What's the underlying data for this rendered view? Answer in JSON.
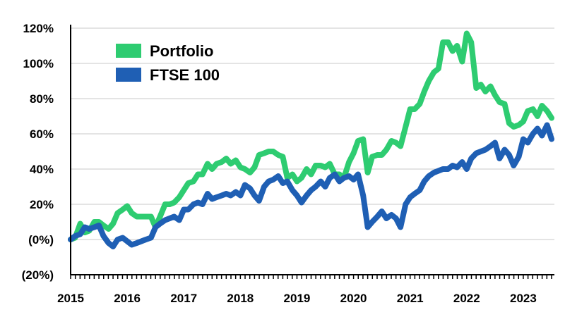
{
  "chart_data": {
    "type": "line",
    "title": "",
    "xlabel": "",
    "ylabel": "",
    "xlim": [
      2015.0,
      2023.55
    ],
    "ylim": [
      -20,
      120
    ],
    "grid": "horizontal",
    "legend": "top-left",
    "colors": {
      "Portfolio": "#2ecc71",
      "FTSE 100": "#1f5fb4"
    },
    "x_ticks": [
      {
        "value": 2015,
        "label": "2015"
      },
      {
        "value": 2016,
        "label": "2016"
      },
      {
        "value": 2017,
        "label": "2017"
      },
      {
        "value": 2018,
        "label": "2018"
      },
      {
        "value": 2019,
        "label": "2019"
      },
      {
        "value": 2020,
        "label": "2020"
      },
      {
        "value": 2021,
        "label": "2021"
      },
      {
        "value": 2022,
        "label": "2022"
      },
      {
        "value": 2023,
        "label": "2023"
      }
    ],
    "y_ticks": [
      {
        "value": 120,
        "label": "120%"
      },
      {
        "value": 100,
        "label": "100%"
      },
      {
        "value": 80,
        "label": "80%"
      },
      {
        "value": 60,
        "label": "60%"
      },
      {
        "value": 40,
        "label": "40%"
      },
      {
        "value": 20,
        "label": "20%"
      },
      {
        "value": 0,
        "label": "(0%)"
      },
      {
        "value": -20,
        "label": "(20%)"
      }
    ],
    "x": [
      2015.0,
      2015.08,
      2015.17,
      2015.25,
      2015.33,
      2015.42,
      2015.5,
      2015.58,
      2015.67,
      2015.75,
      2015.83,
      2015.92,
      2016.0,
      2016.08,
      2016.17,
      2016.25,
      2016.33,
      2016.42,
      2016.5,
      2016.58,
      2016.67,
      2016.75,
      2016.83,
      2016.92,
      2017.0,
      2017.08,
      2017.17,
      2017.25,
      2017.33,
      2017.42,
      2017.5,
      2017.58,
      2017.67,
      2017.75,
      2017.83,
      2017.92,
      2018.0,
      2018.08,
      2018.17,
      2018.25,
      2018.33,
      2018.42,
      2018.5,
      2018.58,
      2018.67,
      2018.75,
      2018.83,
      2018.92,
      2019.0,
      2019.08,
      2019.17,
      2019.25,
      2019.33,
      2019.42,
      2019.5,
      2019.58,
      2019.67,
      2019.75,
      2019.83,
      2019.92,
      2020.0,
      2020.08,
      2020.17,
      2020.25,
      2020.33,
      2020.42,
      2020.5,
      2020.58,
      2020.67,
      2020.75,
      2020.83,
      2020.92,
      2021.0,
      2021.08,
      2021.17,
      2021.25,
      2021.33,
      2021.42,
      2021.5,
      2021.58,
      2021.67,
      2021.75,
      2021.83,
      2021.92,
      2022.0,
      2022.08,
      2022.17,
      2022.25,
      2022.33,
      2022.42,
      2022.5,
      2022.58,
      2022.67,
      2022.75,
      2022.83,
      2022.92,
      2023.0,
      2023.08,
      2023.17,
      2023.25,
      2023.33,
      2023.42,
      2023.5
    ],
    "series": [
      {
        "name": "Portfolio",
        "values": [
          0,
          1,
          9,
          4,
          5,
          10,
          10,
          8,
          6,
          9,
          15,
          17,
          19,
          15,
          13,
          13,
          13,
          13,
          7,
          13,
          20,
          20,
          21,
          24,
          28,
          32,
          33,
          37,
          37,
          43,
          40,
          43,
          44,
          46,
          43,
          45,
          41,
          40,
          38,
          41,
          48,
          49,
          50,
          50,
          48,
          47,
          35,
          37,
          33,
          35,
          40,
          37,
          42,
          42,
          41,
          43,
          37,
          37,
          35,
          44,
          49,
          56,
          57,
          38,
          47,
          48,
          48,
          51,
          56,
          55,
          53,
          64,
          74,
          74,
          77,
          84,
          90,
          95,
          97,
          112,
          112,
          107,
          110,
          101,
          117,
          112,
          86,
          88,
          84,
          87,
          82,
          78,
          77,
          66,
          64,
          65,
          67,
          73,
          74,
          70,
          76,
          73,
          69
        ]
      },
      {
        "name": "FTSE 100",
        "values": [
          0,
          2,
          3,
          7,
          6,
          7,
          8,
          2,
          -2,
          -4,
          0,
          1,
          -1,
          -3,
          -2,
          -1,
          0,
          1,
          7,
          9,
          11,
          12,
          13,
          11,
          17,
          17,
          20,
          21,
          20,
          26,
          23,
          24,
          25,
          26,
          25,
          27,
          25,
          31,
          29,
          25,
          22,
          30,
          33,
          34,
          36,
          32,
          33,
          28,
          25,
          21,
          25,
          28,
          30,
          33,
          30,
          35,
          37,
          33,
          35,
          36,
          34,
          37,
          25,
          7,
          10,
          13,
          16,
          12,
          14,
          12,
          7,
          20,
          24,
          26,
          28,
          33,
          36,
          38,
          39,
          40,
          40,
          42,
          41,
          44,
          40,
          46,
          49,
          50,
          51,
          53,
          55,
          46,
          51,
          48,
          42,
          47,
          57,
          55,
          60,
          63,
          59,
          65,
          57
        ]
      }
    ]
  }
}
